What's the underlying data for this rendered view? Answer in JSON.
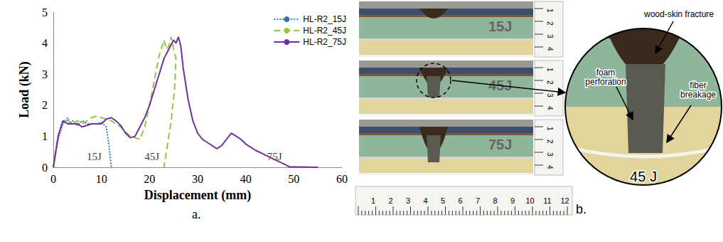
{
  "chart_data": {
    "type": "line",
    "panel_label": "a.",
    "x_label": "Displacement (mm)",
    "y_label": "Load (kN)",
    "xlim": [
      0,
      60
    ],
    "xticks": [
      0,
      10,
      20,
      30,
      40,
      50,
      60
    ],
    "ylim": [
      0,
      5
    ],
    "yticks": [
      0,
      1,
      2,
      3,
      4,
      5
    ],
    "grid": false,
    "legend": "top-right",
    "series": [
      {
        "name": "HL-R2_15J",
        "color": "#2e75b6",
        "line_style": "dotted",
        "x": [
          0,
          1,
          2,
          3,
          3.5,
          4,
          5,
          6,
          7,
          8,
          9,
          10,
          11,
          11.5,
          12,
          12.1
        ],
        "values": [
          0,
          0.9,
          1.4,
          1.6,
          1.4,
          1.5,
          1.35,
          1.5,
          1.4,
          1.4,
          1.4,
          1.45,
          1.3,
          0.8,
          0.1,
          0
        ]
      },
      {
        "name": "HL-R2_45J",
        "color": "#92c83e",
        "line_style": "dashed",
        "x": [
          0,
          1,
          2,
          3,
          4,
          5,
          6,
          8,
          9,
          10,
          12,
          14,
          16,
          18,
          19,
          20,
          21,
          22,
          23,
          23.5,
          24,
          24.5,
          25,
          25.5,
          25.2,
          24.5,
          23.5,
          23
        ],
        "values": [
          0,
          1,
          1.5,
          1.5,
          1.4,
          1.5,
          1.4,
          1.6,
          1.65,
          1.6,
          1.5,
          1.3,
          1.0,
          0.9,
          1.3,
          2,
          2.8,
          3.6,
          4.1,
          3.8,
          3.9,
          4.2,
          3.8,
          3.5,
          2.5,
          1.5,
          0.5,
          0
        ]
      },
      {
        "name": "HL-R2_75J",
        "color": "#7030a0",
        "line_style": "solid",
        "x": [
          0,
          1,
          2,
          3,
          4,
          5,
          6,
          8,
          10,
          11,
          12,
          13,
          14,
          15,
          16,
          17,
          18,
          19,
          20,
          21,
          22,
          23,
          24,
          25,
          25.5,
          26,
          26.5,
          27,
          28,
          29,
          30,
          31,
          33,
          34,
          35,
          36,
          37,
          38,
          39,
          40,
          42,
          44,
          46,
          48,
          49,
          55
        ],
        "values": [
          0,
          1,
          1.5,
          1.4,
          1.4,
          1.4,
          1.3,
          1.4,
          1.4,
          1.55,
          1.6,
          1.5,
          1.35,
          1.1,
          0.95,
          1.0,
          1.3,
          1.6,
          2.0,
          2.5,
          3.0,
          3.5,
          3.8,
          4.1,
          4.0,
          4.2,
          3.9,
          3.2,
          2.2,
          1.5,
          1.1,
          0.9,
          0.7,
          0.6,
          0.7,
          0.9,
          1.1,
          1.0,
          0.9,
          0.75,
          0.55,
          0.4,
          0.25,
          0.1,
          0.02,
          0
        ]
      }
    ],
    "annotations": [
      {
        "text": "15J",
        "x": 8.5,
        "y": 0.35
      },
      {
        "text": "45J",
        "x": 20.5,
        "y": 0.35
      },
      {
        "text": "75J",
        "x": 46,
        "y": 0.35
      }
    ]
  },
  "panel_b": {
    "panel_label": "b.",
    "specimens": [
      "15J",
      "45J",
      "75J"
    ],
    "ruler_vertical": [
      "1",
      "2",
      "3",
      "4"
    ],
    "ruler_horizontal": [
      "1",
      "2",
      "3",
      "4",
      "5",
      "6",
      "7",
      "8",
      "9",
      "10",
      "11",
      "12"
    ],
    "zoom_label": "45 J",
    "zoom_specimen": 1,
    "callouts": [
      "wood-skin fracture",
      "foam perforation",
      "fiber breakage"
    ]
  }
}
